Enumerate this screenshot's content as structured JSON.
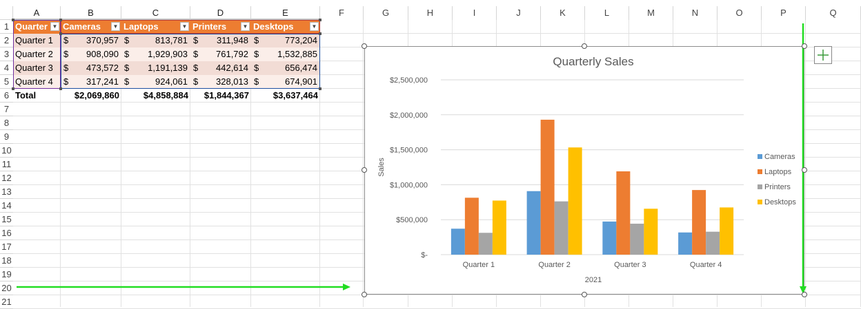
{
  "columns": [
    "A",
    "B",
    "C",
    "D",
    "E",
    "F",
    "G",
    "H",
    "I",
    "J",
    "K",
    "L",
    "M",
    "N",
    "O",
    "P",
    "Q"
  ],
  "rows": [
    "1",
    "2",
    "3",
    "4",
    "5",
    "6",
    "7",
    "8",
    "9",
    "10",
    "11",
    "12",
    "13",
    "14",
    "15",
    "16",
    "17",
    "18",
    "19",
    "20",
    "21"
  ],
  "table": {
    "headers": [
      "Quarter",
      "Cameras",
      "Laptops",
      "Printers",
      "Desktops"
    ],
    "currency_symbol": "$",
    "data": [
      [
        "Quarter 1",
        "370,957",
        "813,781",
        "311,948",
        "773,204"
      ],
      [
        "Quarter 2",
        "908,090",
        "1,929,903",
        "761,792",
        "1,532,885"
      ],
      [
        "Quarter 3",
        "473,572",
        "1,191,139",
        "442,614",
        "656,474"
      ],
      [
        "Quarter 4",
        "317,241",
        "924,061",
        "328,013",
        "674,901"
      ]
    ],
    "total_label": "Total",
    "totals": [
      "$2,069,860",
      "$4,858,884",
      "$1,844,367",
      "$3,637,464"
    ]
  },
  "chart_data": {
    "type": "bar",
    "title": "Quarterly Sales",
    "xlabel": "2021",
    "ylabel": "Sales",
    "categories": [
      "Quarter 1",
      "Quarter 2",
      "Quarter 3",
      "Quarter 4"
    ],
    "series": [
      {
        "name": "Cameras",
        "color": "#5b9bd5",
        "values": [
          370957,
          908090,
          473572,
          317241
        ]
      },
      {
        "name": "Laptops",
        "color": "#ed7d31",
        "values": [
          813781,
          1929903,
          1191139,
          924061
        ]
      },
      {
        "name": "Printers",
        "color": "#a5a5a5",
        "values": [
          311948,
          761792,
          442614,
          328013
        ]
      },
      {
        "name": "Desktops",
        "color": "#ffc000",
        "values": [
          773204,
          1532885,
          656474,
          674901
        ]
      }
    ],
    "ylim": [
      0,
      2500000
    ],
    "yticks": [
      0,
      500000,
      1000000,
      1500000,
      2000000,
      2500000
    ],
    "ytick_labels": [
      "$-",
      "$500,000",
      "$1,000,000",
      "$1,500,000",
      "$2,000,000",
      "$2,500,000"
    ],
    "grid": true,
    "legend": "right"
  },
  "colors": {
    "header_orange": "#ed7d31",
    "band_light": "#fbeee9",
    "band_dark": "#f2dcd5",
    "annotation_arrow": "#22dd22"
  },
  "chart_elements_button": "+"
}
